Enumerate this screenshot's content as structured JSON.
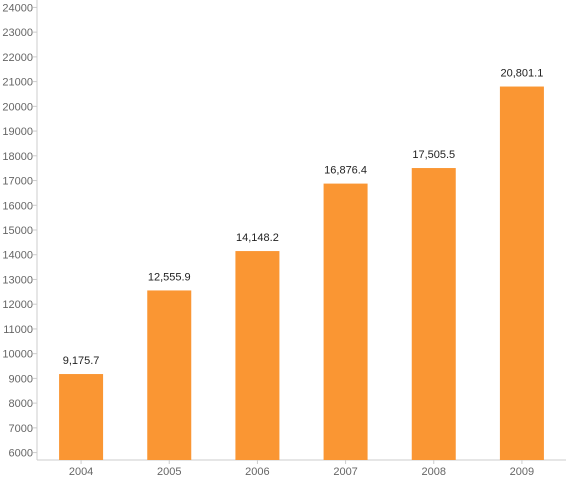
{
  "chart_data": {
    "type": "bar",
    "title": "",
    "xlabel": "",
    "ylabel": "",
    "categories": [
      "2004",
      "2005",
      "2006",
      "2007",
      "2008",
      "2009"
    ],
    "values": [
      9175.7,
      12555.9,
      14148.2,
      16876.4,
      17505.5,
      20801.1
    ],
    "data_labels": [
      "9,175.7",
      "12,555.9",
      "14,148.2",
      "16,876.4",
      "17,505.5",
      "20,801.1"
    ],
    "ylim": [
      5700,
      24300
    ],
    "yticks": [
      6000,
      7000,
      8000,
      9000,
      10000,
      11000,
      12000,
      13000,
      14000,
      15000,
      16000,
      17000,
      18000,
      19000,
      20000,
      21000,
      22000,
      23000,
      24000
    ],
    "grid": false,
    "legend": "none",
    "bar_color": "#fa9633",
    "axis_color": "#cccccc",
    "tick_color": "#666666"
  }
}
